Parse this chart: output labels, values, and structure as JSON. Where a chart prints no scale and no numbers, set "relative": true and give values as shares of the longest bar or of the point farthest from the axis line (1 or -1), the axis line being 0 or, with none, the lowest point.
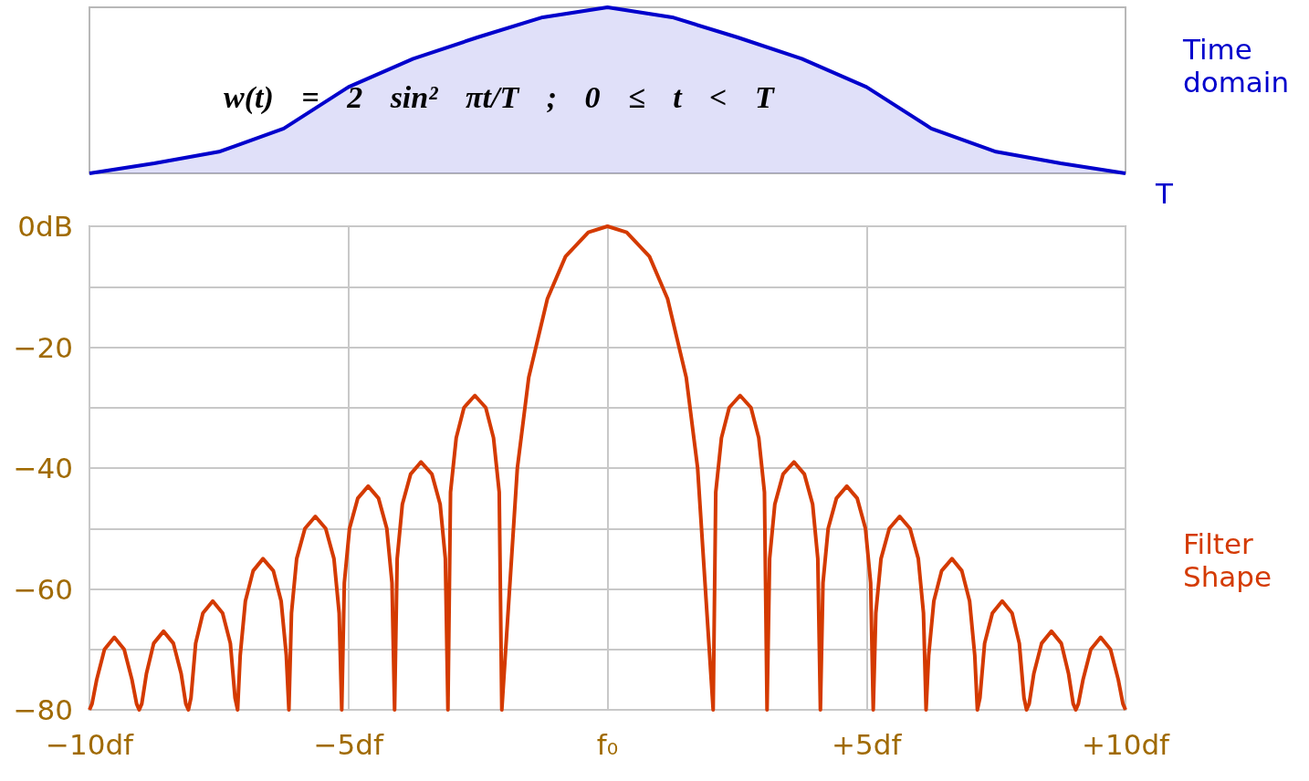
{
  "chart_data": [
    {
      "type": "area",
      "relative": true,
      "marker": "none",
      "categories": [
        null,
        null,
        null,
        null,
        null,
        null,
        null,
        null,
        null,
        null,
        null,
        null,
        null,
        null,
        null,
        null,
        null
      ],
      "series": [
        {
          "color": "#0000cc",
          "values": [
            0,
            0.06,
            0.13,
            0.27,
            0.52,
            0.69,
            0.82,
            0.94,
            1,
            0.94,
            0.82,
            0.69,
            0.52,
            0.27,
            0.13,
            0.06,
            0
          ]
        }
      ],
      "annotations": [
        "w(t) = 2 sin² πt/T ; 0 ≤ t < T",
        "Time domain",
        "T"
      ]
    },
    {
      "type": "line",
      "grid": true,
      "marker": "none",
      "xlim": [
        -10,
        10
      ],
      "ylim": [
        -80,
        0
      ],
      "xticks": [
        {
          "value": -10,
          "label": "−10df"
        },
        {
          "value": -5,
          "label": "−5df"
        },
        {
          "value": 0,
          "label": "f₀"
        },
        {
          "value": 5,
          "label": "+5df"
        },
        {
          "value": 10,
          "label": "+10df"
        }
      ],
      "yticks": [
        {
          "value": -80,
          "label": "−80"
        },
        {
          "value": -70,
          "label": null
        },
        {
          "value": -60,
          "label": "−60"
        },
        {
          "value": -50,
          "label": null
        },
        {
          "value": -40,
          "label": "−40"
        },
        {
          "value": -30,
          "label": null
        },
        {
          "value": -20,
          "label": "−20"
        },
        {
          "value": -10,
          "label": null
        },
        {
          "value": 0,
          "label": "0dB"
        }
      ],
      "x": [
        -10,
        -9.95,
        -9.86,
        -9.71,
        -9.52,
        -9.33,
        -9.18,
        -9.09,
        -9.04,
        -8.99,
        -8.9,
        -8.76,
        -8.57,
        -8.38,
        -8.23,
        -8.14,
        -8.09,
        -8.04,
        -7.95,
        -7.81,
        -7.62,
        -7.43,
        -7.28,
        -7.19,
        -7.14,
        -7.09,
        -6.99,
        -6.84,
        -6.65,
        -6.45,
        -6.3,
        -6.2,
        -6.15,
        -6.1,
        -6,
        -5.84,
        -5.64,
        -5.44,
        -5.28,
        -5.18,
        -5.13,
        -5.08,
        -4.98,
        -4.82,
        -4.62,
        -4.42,
        -4.26,
        -4.16,
        -4.11,
        -4.06,
        -3.96,
        -3.8,
        -3.6,
        -3.39,
        -3.23,
        -3.13,
        -3.08,
        -3.03,
        -2.92,
        -2.77,
        -2.56,
        -2.35,
        -2.2,
        -2.09,
        -2.04,
        -1.74,
        -1.52,
        -1.16,
        -0.81,
        -0.37,
        0,
        0.37,
        0.81,
        1.16,
        1.52,
        1.74,
        2.04,
        2.09,
        2.2,
        2.35,
        2.56,
        2.77,
        2.92,
        3.03,
        3.08,
        3.13,
        3.23,
        3.39,
        3.6,
        3.8,
        3.96,
        4.06,
        4.11,
        4.16,
        4.26,
        4.42,
        4.62,
        4.82,
        4.98,
        5.08,
        5.13,
        5.18,
        5.28,
        5.44,
        5.64,
        5.84,
        6,
        6.1,
        6.15,
        6.2,
        6.3,
        6.45,
        6.65,
        6.84,
        6.99,
        7.09,
        7.14,
        7.19,
        7.28,
        7.43,
        7.62,
        7.81,
        7.95,
        8.04,
        8.09,
        8.14,
        8.23,
        8.38,
        8.57,
        8.76,
        8.9,
        8.99,
        9.04,
        9.09,
        9.18,
        9.33,
        9.52,
        9.71,
        9.86,
        9.95,
        10
      ],
      "series": [
        {
          "color": "#d43a00",
          "values": [
            -80,
            -79,
            -75,
            -70,
            -68,
            -70,
            -75,
            -79,
            -80,
            -79,
            -74,
            -69,
            -67,
            -69,
            -74,
            -79,
            -80,
            -78,
            -69,
            -64,
            -62,
            -64,
            -69,
            -78,
            -80,
            -71,
            -62,
            -57,
            -55,
            -57,
            -62,
            -71,
            -80,
            -64,
            -55,
            -50,
            -48,
            -50,
            -55,
            -64,
            -80,
            -59,
            -50,
            -45,
            -43,
            -45,
            -50,
            -59,
            -80,
            -55,
            -46,
            -41,
            -39,
            -41,
            -46,
            -55,
            -80,
            -44,
            -35,
            -30,
            -28,
            -30,
            -35,
            -44,
            -80,
            -40,
            -25,
            -12,
            -5,
            -1,
            0,
            -1,
            -5,
            -12,
            -25,
            -40,
            -80,
            -44,
            -35,
            -30,
            -28,
            -30,
            -35,
            -44,
            -80,
            -55,
            -46,
            -41,
            -39,
            -41,
            -46,
            -55,
            -80,
            -59,
            -50,
            -45,
            -43,
            -45,
            -50,
            -59,
            -80,
            -64,
            -55,
            -50,
            -48,
            -50,
            -55,
            -64,
            -80,
            -71,
            -62,
            -57,
            -55,
            -57,
            -62,
            -71,
            -80,
            -78,
            -69,
            -64,
            -62,
            -64,
            -69,
            -78,
            -80,
            -79,
            -74,
            -69,
            -67,
            -69,
            -74,
            -79,
            -80,
            -79,
            -75,
            -70,
            -68,
            -70,
            -75,
            -79,
            -80
          ]
        }
      ],
      "annotations": [
        "Filter Shape"
      ]
    }
  ]
}
